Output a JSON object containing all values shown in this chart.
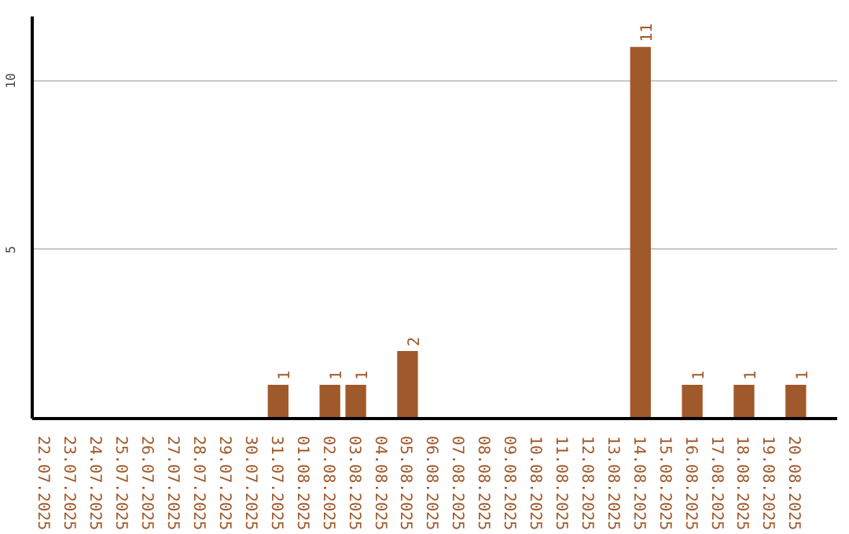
{
  "chart_data": {
    "type": "bar",
    "categories": [
      "22.07.2025",
      "23.07.2025",
      "24.07.2025",
      "25.07.2025",
      "26.07.2025",
      "27.07.2025",
      "28.07.2025",
      "29.07.2025",
      "30.07.2025",
      "31.07.2025",
      "01.08.2025",
      "02.08.2025",
      "03.08.2025",
      "04.08.2025",
      "05.08.2025",
      "06.08.2025",
      "07.08.2025",
      "08.08.2025",
      "09.08.2025",
      "10.08.2025",
      "11.08.2025",
      "12.08.2025",
      "13.08.2025",
      "14.08.2025",
      "15.08.2025",
      "16.08.2025",
      "17.08.2025",
      "18.08.2025",
      "19.08.2025",
      "20.08.2025"
    ],
    "values": [
      0,
      0,
      0,
      0,
      0,
      0,
      0,
      0,
      0,
      1,
      0,
      1,
      1,
      0,
      2,
      0,
      0,
      0,
      0,
      0,
      0,
      0,
      0,
      11,
      0,
      1,
      0,
      1,
      0,
      1
    ],
    "value_labels": [
      null,
      null,
      null,
      null,
      null,
      null,
      null,
      null,
      null,
      "1",
      null,
      "1",
      "1",
      null,
      "2",
      null,
      null,
      null,
      null,
      null,
      null,
      null,
      null,
      "11",
      null,
      "1",
      null,
      "1",
      null,
      "1"
    ],
    "color": "#a0592a",
    "ylim": [
      0,
      11.9
    ],
    "yticks": [
      5,
      10
    ],
    "grid": "y"
  }
}
